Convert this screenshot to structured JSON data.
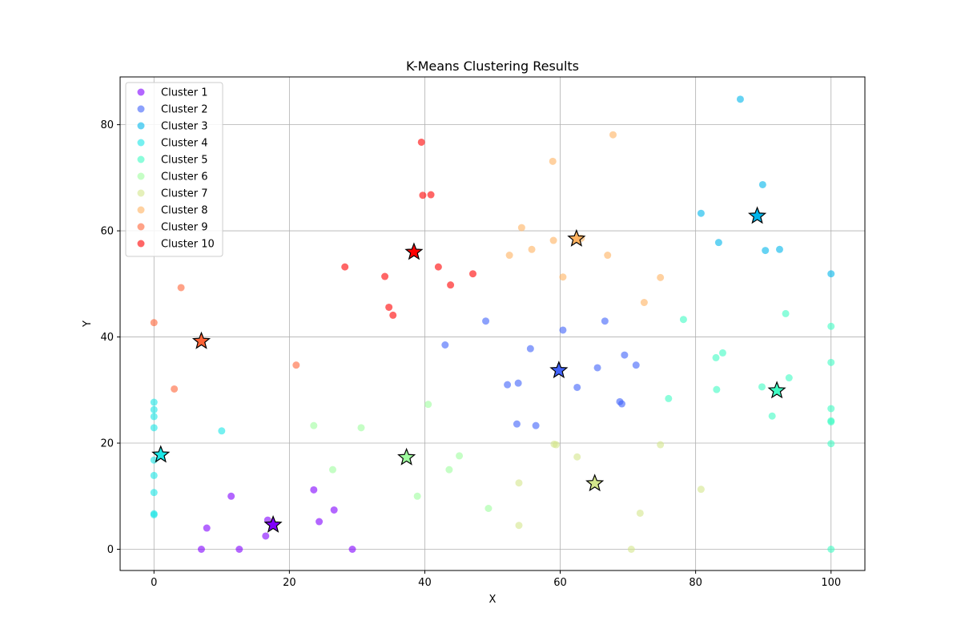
{
  "chart_data": {
    "type": "scatter",
    "title": "K-Means Clustering Results",
    "xlabel": "X",
    "ylabel": "Y",
    "xlim": [
      -5,
      105
    ],
    "ylim": [
      -4,
      89
    ],
    "xticks": [
      0,
      20,
      40,
      60,
      80,
      100
    ],
    "yticks": [
      0,
      20,
      40,
      60,
      80
    ],
    "grid": true,
    "legend_position": "top-left",
    "point_opacity": 0.6,
    "series": [
      {
        "name": "Cluster 1",
        "color": "#8000ff",
        "points": [
          [
            7,
            0
          ],
          [
            7.8,
            4
          ],
          [
            11.4,
            10
          ],
          [
            12.6,
            0
          ],
          [
            16.5,
            2.5
          ],
          [
            16.8,
            5.5
          ],
          [
            23.6,
            11.2
          ],
          [
            24.4,
            5.2
          ],
          [
            26.6,
            7.4
          ],
          [
            29.3,
            0
          ]
        ]
      },
      {
        "name": "Cluster 2",
        "color": "#4062fa",
        "points": [
          [
            43,
            38.5
          ],
          [
            49,
            43
          ],
          [
            52.2,
            31
          ],
          [
            53.6,
            23.6
          ],
          [
            53.8,
            31.3
          ],
          [
            55.6,
            37.8
          ],
          [
            56.4,
            23.3
          ],
          [
            60.4,
            41.3
          ],
          [
            62.5,
            30.5
          ],
          [
            65.5,
            34.2
          ],
          [
            66.6,
            43
          ],
          [
            68.8,
            27.8
          ],
          [
            69.1,
            27.4
          ],
          [
            69.5,
            36.6
          ],
          [
            71.2,
            34.7
          ]
        ]
      },
      {
        "name": "Cluster 3",
        "color": "#00b5eb",
        "points": [
          [
            80.8,
            63.3
          ],
          [
            83.4,
            57.8
          ],
          [
            86.6,
            84.8
          ],
          [
            89.9,
            68.7
          ],
          [
            90.3,
            56.3
          ],
          [
            92.4,
            56.5
          ],
          [
            100,
            51.9
          ]
        ]
      },
      {
        "name": "Cluster 4",
        "color": "#1be6e6",
        "points": [
          [
            0,
            27.7
          ],
          [
            0,
            26.3
          ],
          [
            0,
            25
          ],
          [
            0,
            22.9
          ],
          [
            0,
            16.8
          ],
          [
            0,
            13.9
          ],
          [
            0,
            10.7
          ],
          [
            0,
            6.7
          ],
          [
            0,
            6.5
          ],
          [
            10,
            22.3
          ]
        ]
      },
      {
        "name": "Cluster 5",
        "color": "#40fcc3",
        "points": [
          [
            76,
            28.4
          ],
          [
            78.2,
            43.3
          ],
          [
            83,
            36.1
          ],
          [
            83.1,
            30.1
          ],
          [
            84,
            37
          ],
          [
            89.8,
            30.6
          ],
          [
            91.3,
            25.1
          ],
          [
            93.3,
            44.4
          ],
          [
            93.8,
            32.3
          ],
          [
            100,
            42
          ],
          [
            100,
            35.2
          ],
          [
            100,
            26.5
          ],
          [
            100,
            24.2
          ],
          [
            100,
            24
          ],
          [
            100,
            19.9
          ],
          [
            100,
            0
          ]
        ]
      },
      {
        "name": "Cluster 6",
        "color": "#9ffd9f",
        "points": [
          [
            23.6,
            23.3
          ],
          [
            26.4,
            15
          ],
          [
            30.6,
            22.9
          ],
          [
            38.9,
            10
          ],
          [
            40.5,
            27.3
          ],
          [
            43.6,
            15
          ],
          [
            45.1,
            17.6
          ],
          [
            49.4,
            7.7
          ]
        ]
      },
      {
        "name": "Cluster 7",
        "color": "#d4e68c",
        "points": [
          [
            53.9,
            12.5
          ],
          [
            53.9,
            4.5
          ],
          [
            59.1,
            19.8
          ],
          [
            59.4,
            19.7
          ],
          [
            62.5,
            17.4
          ],
          [
            70.5,
            0
          ],
          [
            71.8,
            6.8
          ],
          [
            74.8,
            19.7
          ],
          [
            80.8,
            11.3
          ]
        ]
      },
      {
        "name": "Cluster 8",
        "color": "#ffb260",
        "points": [
          [
            52.5,
            55.4
          ],
          [
            54.3,
            60.6
          ],
          [
            55.8,
            56.5
          ],
          [
            58.9,
            73.1
          ],
          [
            59,
            58.2
          ],
          [
            60.4,
            51.3
          ],
          [
            63.1,
            58.6
          ],
          [
            67,
            55.4
          ],
          [
            67.8,
            78.1
          ],
          [
            72.4,
            46.5
          ],
          [
            74.8,
            51.2
          ]
        ]
      },
      {
        "name": "Cluster 9",
        "color": "#ff6437",
        "points": [
          [
            0,
            42.7
          ],
          [
            3,
            30.2
          ],
          [
            4,
            49.3
          ],
          [
            21,
            34.7
          ]
        ]
      },
      {
        "name": "Cluster 10",
        "color": "#ff0000",
        "points": [
          [
            28.2,
            53.2
          ],
          [
            34.1,
            51.4
          ],
          [
            34.7,
            45.6
          ],
          [
            35.3,
            44.1
          ],
          [
            39.5,
            76.7
          ],
          [
            39.7,
            66.7
          ],
          [
            40.9,
            66.8
          ],
          [
            42,
            53.2
          ],
          [
            43.8,
            49.8
          ],
          [
            47.1,
            51.9
          ]
        ]
      }
    ],
    "centroids": [
      {
        "cluster": "Cluster 1",
        "x": 17.6,
        "y": 4.6,
        "color": "#8000ff"
      },
      {
        "cluster": "Cluster 2",
        "x": 59.8,
        "y": 33.7,
        "color": "#4062fa"
      },
      {
        "cluster": "Cluster 3",
        "x": 89.1,
        "y": 62.8,
        "color": "#00b5eb"
      },
      {
        "cluster": "Cluster 4",
        "x": 1.0,
        "y": 17.8,
        "color": "#1be6e6"
      },
      {
        "cluster": "Cluster 5",
        "x": 92.0,
        "y": 29.9,
        "color": "#40fcc3"
      },
      {
        "cluster": "Cluster 6",
        "x": 37.3,
        "y": 17.3,
        "color": "#9ffd9f"
      },
      {
        "cluster": "Cluster 7",
        "x": 65.1,
        "y": 12.4,
        "color": "#d4e68c"
      },
      {
        "cluster": "Cluster 8",
        "x": 62.4,
        "y": 58.5,
        "color": "#ffb260"
      },
      {
        "cluster": "Cluster 9",
        "x": 7.0,
        "y": 39.2,
        "color": "#ff6437"
      },
      {
        "cluster": "Cluster 10",
        "x": 38.4,
        "y": 56.0,
        "color": "#ff0000"
      }
    ]
  }
}
